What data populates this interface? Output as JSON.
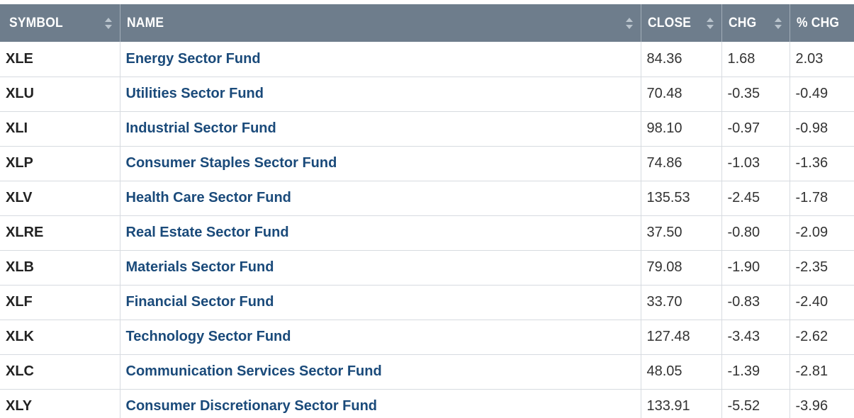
{
  "columns": [
    {
      "key": "symbol",
      "label": "SYMBOL"
    },
    {
      "key": "name",
      "label": "NAME"
    },
    {
      "key": "close",
      "label": "CLOSE"
    },
    {
      "key": "chg",
      "label": "CHG"
    },
    {
      "key": "pct_chg",
      "label": "% CHG"
    }
  ],
  "colors": {
    "header_bg": "#6e7d8c",
    "link": "#1a4a7a",
    "row_border": "#d7dbe0"
  },
  "rows": [
    {
      "symbol": "XLE",
      "name": "Energy Sector Fund",
      "close": "84.36",
      "chg": "1.68",
      "pct_chg": "2.03"
    },
    {
      "symbol": "XLU",
      "name": "Utilities Sector Fund",
      "close": "70.48",
      "chg": "-0.35",
      "pct_chg": "-0.49"
    },
    {
      "symbol": "XLI",
      "name": "Industrial Sector Fund",
      "close": "98.10",
      "chg": "-0.97",
      "pct_chg": "-0.98"
    },
    {
      "symbol": "XLP",
      "name": "Consumer Staples Sector Fund",
      "close": "74.86",
      "chg": "-1.03",
      "pct_chg": "-1.36"
    },
    {
      "symbol": "XLV",
      "name": "Health Care Sector Fund",
      "close": "135.53",
      "chg": "-2.45",
      "pct_chg": "-1.78"
    },
    {
      "symbol": "XLRE",
      "name": "Real Estate Sector Fund",
      "close": "37.50",
      "chg": "-0.80",
      "pct_chg": "-2.09"
    },
    {
      "symbol": "XLB",
      "name": "Materials Sector Fund",
      "close": "79.08",
      "chg": "-1.90",
      "pct_chg": "-2.35"
    },
    {
      "symbol": "XLF",
      "name": "Financial Sector Fund",
      "close": "33.70",
      "chg": "-0.83",
      "pct_chg": "-2.40"
    },
    {
      "symbol": "XLK",
      "name": "Technology Sector Fund",
      "close": "127.48",
      "chg": "-3.43",
      "pct_chg": "-2.62"
    },
    {
      "symbol": "XLC",
      "name": "Communication Services Sector Fund",
      "close": "48.05",
      "chg": "-1.39",
      "pct_chg": "-2.81"
    },
    {
      "symbol": "XLY",
      "name": "Consumer Discretionary Sector Fund",
      "close": "133.91",
      "chg": "-5.52",
      "pct_chg": "-3.96"
    }
  ]
}
